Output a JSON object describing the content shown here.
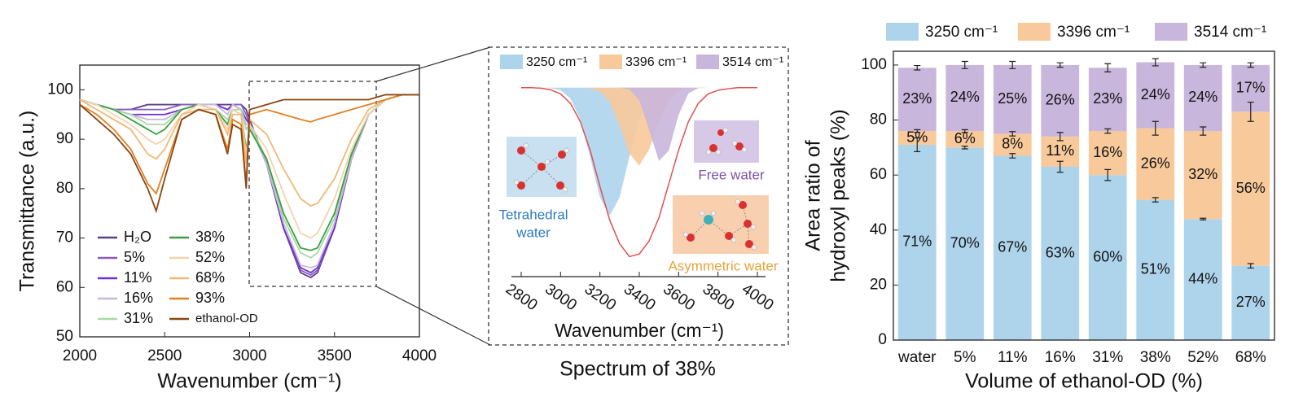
{
  "chart_data": [
    {
      "type": "line",
      "xlabel": "Wavenumber (cm⁻¹)",
      "ylabel": "Transmittance (a.u.)",
      "x": [
        2000,
        2100,
        2200,
        2300,
        2400,
        2450,
        2500,
        2600,
        2700,
        2800,
        2870,
        2900,
        2950,
        2980,
        3000,
        3100,
        3200,
        3300,
        3360,
        3400,
        3500,
        3600,
        3700,
        3800,
        3900,
        4000
      ],
      "series": [
        {
          "name": "H₂O",
          "color": "#5b3f87",
          "values": [
            98,
            97,
            96,
            96,
            97,
            97,
            97,
            97,
            97,
            97,
            97,
            97,
            97,
            96,
            94,
            85,
            72,
            63,
            62,
            63,
            72,
            86,
            95,
            98,
            99,
            99
          ]
        },
        {
          "name": "5%",
          "color": "#8a5cc0",
          "values": [
            98,
            97,
            96,
            96,
            96,
            96,
            96,
            97,
            97,
            97,
            96,
            97,
            97,
            95,
            93,
            85,
            72,
            63.5,
            62.5,
            63.5,
            72,
            86,
            95,
            98,
            99,
            99
          ]
        },
        {
          "name": "11%",
          "color": "#7030d0",
          "values": [
            98,
            97,
            96,
            95,
            95,
            95,
            95,
            96,
            97,
            97,
            96,
            97,
            96,
            94,
            93,
            85,
            72,
            64,
            63,
            64,
            72,
            86,
            95,
            98,
            99,
            99
          ]
        },
        {
          "name": "16%",
          "color": "#c8b8d8",
          "values": [
            98,
            97,
            96,
            95,
            94,
            94,
            94,
            96,
            97,
            97,
            95,
            97,
            96,
            93,
            93,
            85,
            73,
            64.5,
            64,
            64.5,
            73,
            86,
            95,
            98,
            99,
            99
          ]
        },
        {
          "name": "31%",
          "color": "#a8d8a8",
          "values": [
            98,
            97,
            96,
            95,
            93,
            93,
            93,
            96,
            97,
            96,
            94,
            96,
            96,
            92,
            93,
            86,
            74,
            67,
            66,
            67,
            74,
            87,
            95,
            98,
            99,
            99
          ]
        },
        {
          "name": "38%",
          "color": "#3aa040",
          "values": [
            98,
            97,
            96,
            94,
            92,
            91,
            92,
            96,
            97,
            96,
            93,
            96,
            95,
            88,
            92,
            86,
            75,
            68,
            67.5,
            68,
            75,
            87,
            95,
            98,
            99,
            99
          ]
        },
        {
          "name": "52%",
          "color": "#f5d2b0",
          "values": [
            98,
            97,
            95,
            93,
            90,
            89,
            90,
            95,
            97,
            96,
            92,
            96,
            95,
            87,
            93,
            88,
            79,
            71,
            70,
            71,
            78,
            88,
            95,
            98,
            99,
            99
          ]
        },
        {
          "name": "68%",
          "color": "#f0b878",
          "values": [
            98,
            96,
            94,
            92,
            87,
            86,
            88,
            95,
            96,
            96,
            91,
            95,
            95,
            85,
            94,
            91,
            84,
            78,
            76.5,
            77,
            82,
            90,
            96,
            98,
            99,
            99
          ]
        },
        {
          "name": "93%",
          "color": "#e08020",
          "values": [
            97,
            95,
            92,
            88,
            81,
            79,
            84,
            94,
            96,
            95,
            88,
            94,
            93,
            81,
            95,
            96,
            95,
            94,
            93.5,
            94,
            95,
            96,
            97,
            98,
            99,
            99
          ]
        },
        {
          "name": "ethanol-OD",
          "color": "#8b4513",
          "values": [
            97,
            94,
            91,
            87,
            80,
            75.5,
            82,
            94,
            96,
            95,
            87,
            93,
            92,
            80,
            96,
            97,
            98,
            98,
            98,
            98,
            98,
            98,
            98,
            99,
            99,
            99
          ]
        }
      ],
      "xlim": [
        2000,
        4000
      ],
      "xticks": [
        2000,
        2500,
        3000,
        3500,
        4000
      ],
      "ylim": [
        50,
        105
      ],
      "yticks": [
        50,
        60,
        70,
        80,
        90,
        100
      ]
    },
    {
      "type": "area",
      "title": "Spectrum of 38%",
      "xlabel": "Wavenumber (cm⁻¹)",
      "x": [
        2800,
        2850,
        2900,
        2950,
        3000,
        3050,
        3100,
        3150,
        3200,
        3250,
        3300,
        3350,
        3400,
        3450,
        3500,
        3550,
        3600,
        3650,
        3700,
        3750,
        3800,
        3850,
        3900,
        3950,
        4000
      ],
      "series": [
        {
          "name": "3250 cm⁻¹",
          "color": "#aed4ec",
          "values": [
            100,
            100,
            100,
            99.9,
            99.5,
            97.9,
            93.9,
            86.7,
            78.9,
            75.4,
            78.9,
            86.7,
            93.9,
            97.9,
            99.5,
            99.9,
            100,
            100,
            100,
            100,
            100,
            100,
            100,
            100,
            100
          ]
        },
        {
          "name": "3396 cm⁻¹",
          "color": "#f8c99a",
          "values": [
            100,
            100,
            100,
            100,
            100,
            100,
            100,
            99.9,
            99.3,
            97.2,
            92.7,
            87.3,
            85,
            88.1,
            93.6,
            97.6,
            99.4,
            99.9,
            100,
            100,
            100,
            100,
            100,
            100,
            100
          ]
        },
        {
          "name": "3514 cm⁻¹",
          "color": "#c9b6dc",
          "values": [
            100,
            100,
            100,
            100,
            100,
            100,
            100,
            100,
            100,
            100,
            100,
            99.7,
            97.6,
            91.8,
            85.9,
            87.9,
            94.8,
            98.9,
            99.9,
            100,
            100,
            100,
            100,
            100,
            100
          ]
        }
      ],
      "fit": {
        "color": "#e0504f",
        "values": [
          100,
          100,
          99.9,
          99.6,
          98.8,
          97,
          93.5,
          88,
          81,
          74.5,
          70,
          67.5,
          68,
          70.5,
          75,
          81.5,
          88,
          93.5,
          97,
          98.8,
          99.5,
          99.8,
          100,
          100,
          100
        ]
      },
      "annotations": [
        {
          "text": [
            "Tetrahedral",
            "water"
          ],
          "color": "#2b7bbf"
        },
        {
          "text": [
            "Free water"
          ],
          "color": "#7b52a8"
        },
        {
          "text": [
            "Asymmetric water"
          ],
          "color": "#e8a23c"
        }
      ],
      "xlim": [
        2800,
        4000
      ],
      "xticks": [
        2800,
        3000,
        3200,
        3400,
        3600,
        3800,
        4000
      ],
      "ylim": [
        66,
        102
      ]
    },
    {
      "type": "bar",
      "stacked": true,
      "xlabel": "Volume of ethanol-OD (%)",
      "ylabel": [
        "Area ratio of",
        "hydroxyl peaks (%)"
      ],
      "categories": [
        "water",
        "5%",
        "11%",
        "16%",
        "31%",
        "38%",
        "52%",
        "68%"
      ],
      "series": [
        {
          "name": "3250 cm⁻¹",
          "color": "#aed4ec",
          "values": [
            71,
            70,
            67,
            63,
            60,
            51,
            44,
            27
          ],
          "value_labels": [
            "71%",
            "70%",
            "67%",
            "63%",
            "60%",
            "51%",
            "44%",
            "27%"
          ],
          "errors": [
            2.5,
            0.5,
            0.8,
            2,
            2,
            0.8,
            0.3,
            0.8
          ]
        },
        {
          "name": "3396 cm⁻¹",
          "color": "#f8c99a",
          "values": [
            5,
            6,
            8,
            11,
            16,
            26,
            32,
            56
          ],
          "value_labels": [
            "5%",
            "6%",
            "8%",
            "11%",
            "16%",
            "26%",
            "32%",
            "56%"
          ],
          "errors": [
            0.5,
            0.5,
            0.8,
            1.5,
            0.8,
            2.5,
            1.5,
            3.5
          ]
        },
        {
          "name": "3514 cm⁻¹",
          "color": "#c9b6dc",
          "values": [
            23,
            24,
            25,
            26,
            23,
            24,
            24,
            17
          ],
          "value_labels": [
            "23%",
            "24%",
            "25%",
            "26%",
            "23%",
            "24%",
            "24%",
            "17%"
          ],
          "errors": [
            0.8,
            1.3,
            1.3,
            0.8,
            1.5,
            1.3,
            0.8,
            0.8
          ]
        }
      ],
      "ylim": [
        0,
        105
      ],
      "yticks": [
        0,
        20,
        40,
        60,
        80,
        100
      ]
    }
  ]
}
